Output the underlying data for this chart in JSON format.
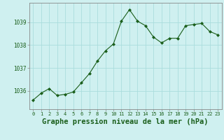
{
  "x": [
    0,
    1,
    2,
    3,
    4,
    5,
    6,
    7,
    8,
    9,
    10,
    11,
    12,
    13,
    14,
    15,
    16,
    17,
    18,
    19,
    20,
    21,
    22,
    23
  ],
  "y": [
    1035.6,
    1035.9,
    1036.1,
    1035.8,
    1035.85,
    1035.95,
    1036.35,
    1036.75,
    1037.3,
    1037.75,
    1038.05,
    1039.05,
    1039.55,
    1039.05,
    1038.85,
    1038.35,
    1038.1,
    1038.3,
    1038.3,
    1038.85,
    1038.9,
    1038.95,
    1038.6,
    1038.45
  ],
  "line_color": "#1a5e1a",
  "marker": "D",
  "marker_size": 2.0,
  "background_color": "#cff0f0",
  "grid_color": "#aadddd",
  "xlabel": "Graphe pression niveau de la mer (hPa)",
  "xlabel_color": "#1a5e1a",
  "xlabel_fontsize": 7.5,
  "tick_color": "#1a5e1a",
  "tick_fontsize": 5.0,
  "ytick_fontsize": 5.5,
  "axis_color": "#888888",
  "ylim": [
    1035.2,
    1039.85
  ],
  "yticks": [
    1036,
    1037,
    1038,
    1039
  ],
  "xticks": [
    0,
    1,
    2,
    3,
    4,
    5,
    6,
    7,
    8,
    9,
    10,
    11,
    12,
    13,
    14,
    15,
    16,
    17,
    18,
    19,
    20,
    21,
    22,
    23
  ],
  "xlim": [
    -0.5,
    23.5
  ]
}
